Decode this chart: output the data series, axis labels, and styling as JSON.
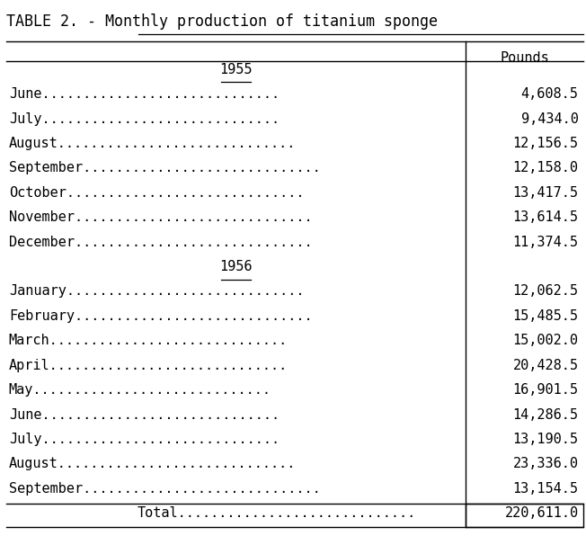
{
  "title": "TABLE 2. - Monthly production of titanium sponge",
  "title_prefix": "TABLE 2. - ",
  "title_underline_part": "Monthly production of titanium sponge",
  "header": "Pounds",
  "year1": "1955",
  "year2": "1956",
  "rows_1955": [
    [
      "June",
      "4,608.5"
    ],
    [
      "July",
      "9,434.0"
    ],
    [
      "August",
      "12,156.5"
    ],
    [
      "September",
      "12,158.0"
    ],
    [
      "October",
      "13,417.5"
    ],
    [
      "November",
      "13,614.5"
    ],
    [
      "December",
      "11,374.5"
    ]
  ],
  "rows_1956": [
    [
      "January",
      "12,062.5"
    ],
    [
      "February",
      "15,485.5"
    ],
    [
      "March",
      "15,002.0"
    ],
    [
      "April",
      "20,428.5"
    ],
    [
      "May",
      "16,901.5"
    ],
    [
      "June",
      "14,286.5"
    ],
    [
      "July",
      "13,190.5"
    ],
    [
      "August",
      "23,336.0"
    ],
    [
      "September",
      "13,154.5"
    ]
  ],
  "total_label": "Total",
  "total_value": "220,611.0",
  "dots_long": ".............................",
  "bg_color": "#ffffff",
  "text_color": "#000000",
  "font_size": 11,
  "title_font_size": 12
}
